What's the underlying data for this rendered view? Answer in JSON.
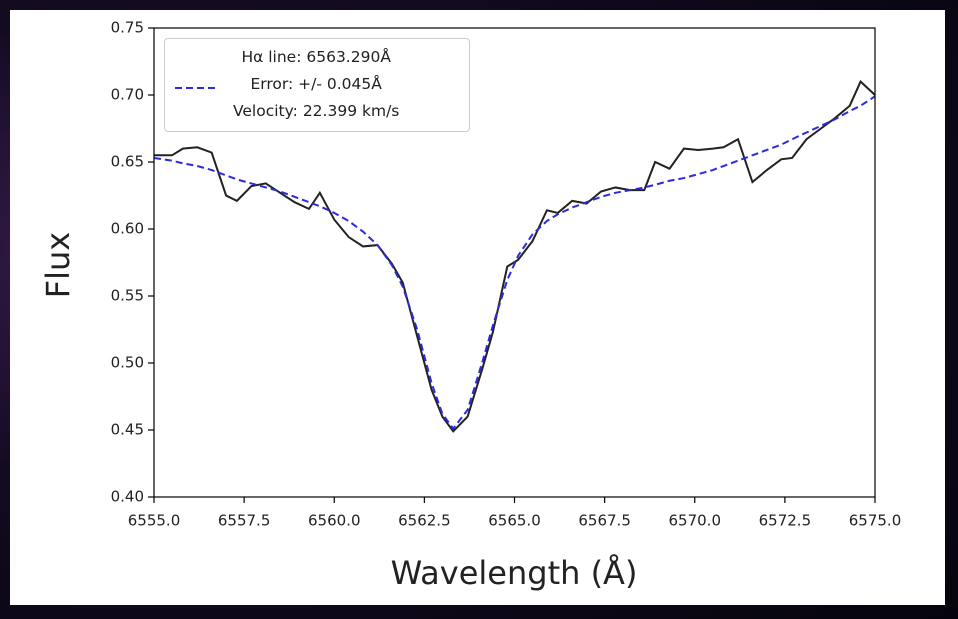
{
  "chart_data": {
    "type": "line",
    "xlabel": "Wavelength (Å)",
    "ylabel": "Flux",
    "x": [
      6555.0,
      6555.5,
      6555.8,
      6556.2,
      6556.6,
      6557.0,
      6557.3,
      6557.7,
      6558.1,
      6558.5,
      6558.9,
      6559.3,
      6559.6,
      6560.0,
      6560.4,
      6560.8,
      6561.2,
      6561.6,
      6561.9,
      6562.3,
      6562.7,
      6563.0,
      6563.3,
      6563.7,
      6564.1,
      6564.4,
      6564.8,
      6565.1,
      6565.5,
      6565.9,
      6566.2,
      6566.6,
      6567.0,
      6567.4,
      6567.8,
      6568.2,
      6568.6,
      6568.9,
      6569.3,
      6569.7,
      6570.1,
      6570.5,
      6570.8,
      6571.2,
      6571.6,
      6572.0,
      6572.4,
      6572.7,
      6573.1,
      6573.5,
      6573.9,
      6574.3,
      6574.6,
      6575.0
    ],
    "series": [
      {
        "color": "#222222",
        "style": "solid",
        "values": [
          0.655,
          0.655,
          0.66,
          0.661,
          0.657,
          0.625,
          0.621,
          0.632,
          0.634,
          0.627,
          0.62,
          0.615,
          0.627,
          0.607,
          0.594,
          0.587,
          0.588,
          0.574,
          0.56,
          0.52,
          0.48,
          0.46,
          0.449,
          0.46,
          0.495,
          0.523,
          0.572,
          0.577,
          0.591,
          0.614,
          0.612,
          0.621,
          0.619,
          0.628,
          0.631,
          0.629,
          0.629,
          0.65,
          0.645,
          0.66,
          0.659,
          0.66,
          0.661,
          0.667,
          0.635,
          0.644,
          0.652,
          0.653,
          0.667,
          0.675,
          0.683,
          0.692,
          0.71,
          0.7
        ]
      },
      {
        "name": "Hα line: 6563.290Å\nError: +/- 0.045Å\nVelocity: 22.399 km/s",
        "color": "#2b2bdc",
        "style": "dashed",
        "values": [
          0.653,
          0.651,
          0.649,
          0.647,
          0.644,
          0.64,
          0.637,
          0.634,
          0.631,
          0.628,
          0.624,
          0.62,
          0.617,
          0.612,
          0.606,
          0.598,
          0.588,
          0.573,
          0.557,
          0.525,
          0.485,
          0.462,
          0.451,
          0.465,
          0.5,
          0.528,
          0.562,
          0.58,
          0.596,
          0.606,
          0.611,
          0.616,
          0.62,
          0.624,
          0.627,
          0.629,
          0.631,
          0.633,
          0.636,
          0.638,
          0.641,
          0.644,
          0.647,
          0.651,
          0.655,
          0.659,
          0.663,
          0.667,
          0.672,
          0.677,
          0.682,
          0.688,
          0.692,
          0.699
        ]
      }
    ],
    "xlim": [
      6555,
      6575
    ],
    "xticks": [
      {
        "value": 6555,
        "label": "6555.0"
      },
      {
        "value": 6557.5,
        "label": "6557.5"
      },
      {
        "value": 6560,
        "label": "6560.0"
      },
      {
        "value": 6562.5,
        "label": "6562.5"
      },
      {
        "value": 6565,
        "label": "6565.0"
      },
      {
        "value": 6567.5,
        "label": "6567.5"
      },
      {
        "value": 6570,
        "label": "6570.0"
      },
      {
        "value": 6572.5,
        "label": "6572.5"
      },
      {
        "value": 6575,
        "label": "6575.0"
      }
    ],
    "ylim": [
      0.4,
      0.75
    ],
    "yticks": [
      {
        "value": 0.4,
        "label": "0.40"
      },
      0.45,
      {
        "value": 0.5,
        "label": "0.50"
      },
      0.55,
      {
        "value": 0.6,
        "label": "0.60"
      },
      0.65,
      {
        "value": 0.7,
        "label": "0.70"
      },
      0.75
    ],
    "grid": false,
    "legend": "upper left"
  }
}
